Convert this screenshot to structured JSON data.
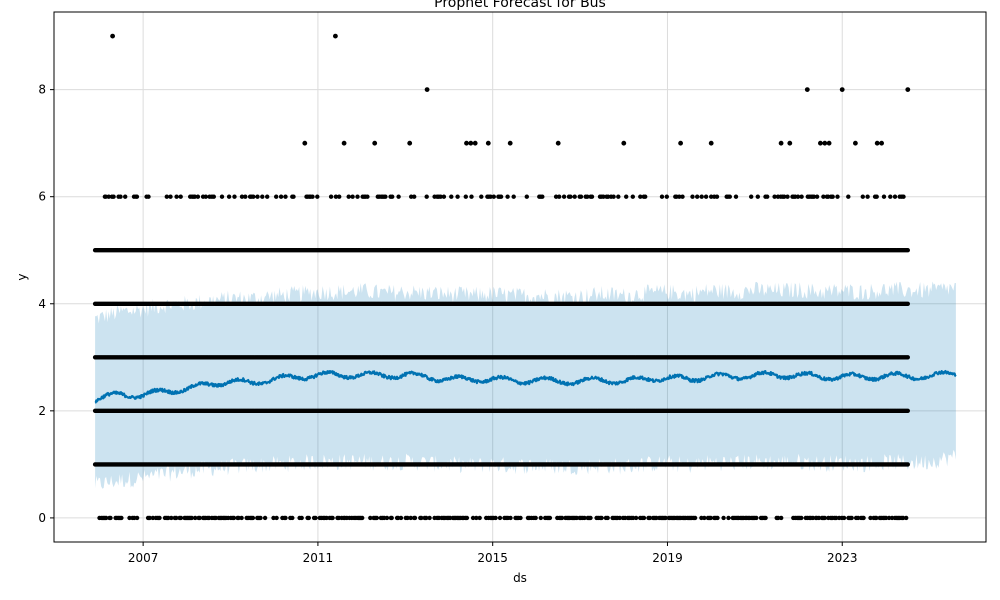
{
  "chart_data": {
    "type": "scatter",
    "title": "Prophet Forecast for Bus",
    "xlabel": "ds",
    "ylabel": "y",
    "xlim": [
      2004.96,
      2026.29
    ],
    "ylim": [
      -0.45,
      9.45
    ],
    "x_ticks": [
      {
        "label": "2007",
        "value": 2007
      },
      {
        "label": "2011",
        "value": 2011
      },
      {
        "label": "2015",
        "value": 2015
      },
      {
        "label": "2019",
        "value": 2019
      },
      {
        "label": "2023",
        "value": 2023
      }
    ],
    "y_ticks": [
      {
        "label": "0",
        "value": 0
      },
      {
        "label": "2",
        "value": 2
      },
      {
        "label": "4",
        "value": 4
      },
      {
        "label": "6",
        "value": 6
      },
      {
        "label": "8",
        "value": 8
      }
    ],
    "grid": true,
    "colors": {
      "observed": "#000000",
      "forecast": "#0072B2",
      "interval": "#0072B2",
      "grid": "#dcdcdc"
    },
    "observed_time_range": [
      2005.9,
      2024.5
    ],
    "forecast_time_range": [
      2005.9,
      2025.6
    ],
    "series": [
      {
        "kind": "observed",
        "y_levels": [
          0,
          1,
          2,
          3,
          4,
          5,
          6
        ],
        "dense_levels": [
          1,
          2,
          3,
          4,
          5
        ],
        "sparse_points": [
          {
            "x": 2006.3,
            "y": 9
          },
          {
            "x": 2011.4,
            "y": 9
          },
          {
            "x": 2013.5,
            "y": 8
          },
          {
            "x": 2022.2,
            "y": 8
          },
          {
            "x": 2023.0,
            "y": 8
          },
          {
            "x": 2024.5,
            "y": 8
          },
          {
            "x": 2010.7,
            "y": 7
          },
          {
            "x": 2011.6,
            "y": 7
          },
          {
            "x": 2012.3,
            "y": 7
          },
          {
            "x": 2013.1,
            "y": 7
          },
          {
            "x": 2014.4,
            "y": 7
          },
          {
            "x": 2014.5,
            "y": 7
          },
          {
            "x": 2014.6,
            "y": 7
          },
          {
            "x": 2014.9,
            "y": 7
          },
          {
            "x": 2015.4,
            "y": 7
          },
          {
            "x": 2016.5,
            "y": 7
          },
          {
            "x": 2018.0,
            "y": 7
          },
          {
            "x": 2019.3,
            "y": 7
          },
          {
            "x": 2020.0,
            "y": 7
          },
          {
            "x": 2021.6,
            "y": 7
          },
          {
            "x": 2021.8,
            "y": 7
          },
          {
            "x": 2022.5,
            "y": 7
          },
          {
            "x": 2022.6,
            "y": 7
          },
          {
            "x": 2022.7,
            "y": 7
          },
          {
            "x": 2023.3,
            "y": 7
          },
          {
            "x": 2023.8,
            "y": 7
          },
          {
            "x": 2023.9,
            "y": 7
          }
        ]
      },
      {
        "kind": "forecast",
        "x": [
          2005.9,
          2006.5,
          2007.0,
          2007.5,
          2008.0,
          2008.5,
          2009.0,
          2009.5,
          2010.0,
          2010.5,
          2011.0,
          2011.5,
          2012.0,
          2012.5,
          2013.0,
          2013.5,
          2014.0,
          2014.5,
          2015.0,
          2015.5,
          2016.0,
          2016.5,
          2017.0,
          2017.5,
          2018.0,
          2018.5,
          2019.0,
          2019.5,
          2020.0,
          2020.5,
          2021.0,
          2021.5,
          2022.0,
          2022.5,
          2023.0,
          2023.5,
          2024.0,
          2024.5,
          2025.0,
          2025.6
        ],
        "yhat": [
          2.2,
          2.32,
          2.28,
          2.38,
          2.4,
          2.5,
          2.55,
          2.52,
          2.6,
          2.62,
          2.68,
          2.66,
          2.68,
          2.65,
          2.68,
          2.62,
          2.6,
          2.58,
          2.6,
          2.55,
          2.58,
          2.55,
          2.55,
          2.58,
          2.55,
          2.6,
          2.62,
          2.58,
          2.66,
          2.62,
          2.68,
          2.65,
          2.68,
          2.62,
          2.65,
          2.62,
          2.66,
          2.64,
          2.65,
          2.7
        ],
        "yhat_lower": [
          0.62,
          0.7,
          0.75,
          0.82,
          0.88,
          0.92,
          0.95,
          0.98,
          1.0,
          1.02,
          1.05,
          1.04,
          1.05,
          1.03,
          1.05,
          1.02,
          1.0,
          0.98,
          1.0,
          0.97,
          0.98,
          0.96,
          0.96,
          0.98,
          0.96,
          1.0,
          1.02,
          0.98,
          1.04,
          1.02,
          1.05,
          1.03,
          1.05,
          1.01,
          1.03,
          1.01,
          1.04,
          1.03,
          1.05,
          1.15
        ],
        "yhat_upper": [
          3.72,
          3.85,
          3.9,
          3.98,
          4.0,
          4.05,
          4.1,
          4.1,
          4.15,
          4.18,
          4.22,
          4.22,
          4.24,
          4.2,
          4.22,
          4.2,
          4.18,
          4.16,
          4.18,
          4.15,
          4.16,
          4.14,
          4.14,
          4.18,
          4.15,
          4.2,
          4.22,
          4.18,
          4.25,
          4.22,
          4.26,
          4.24,
          4.26,
          4.22,
          4.24,
          4.22,
          4.26,
          4.25,
          4.25,
          4.3
        ]
      }
    ]
  }
}
